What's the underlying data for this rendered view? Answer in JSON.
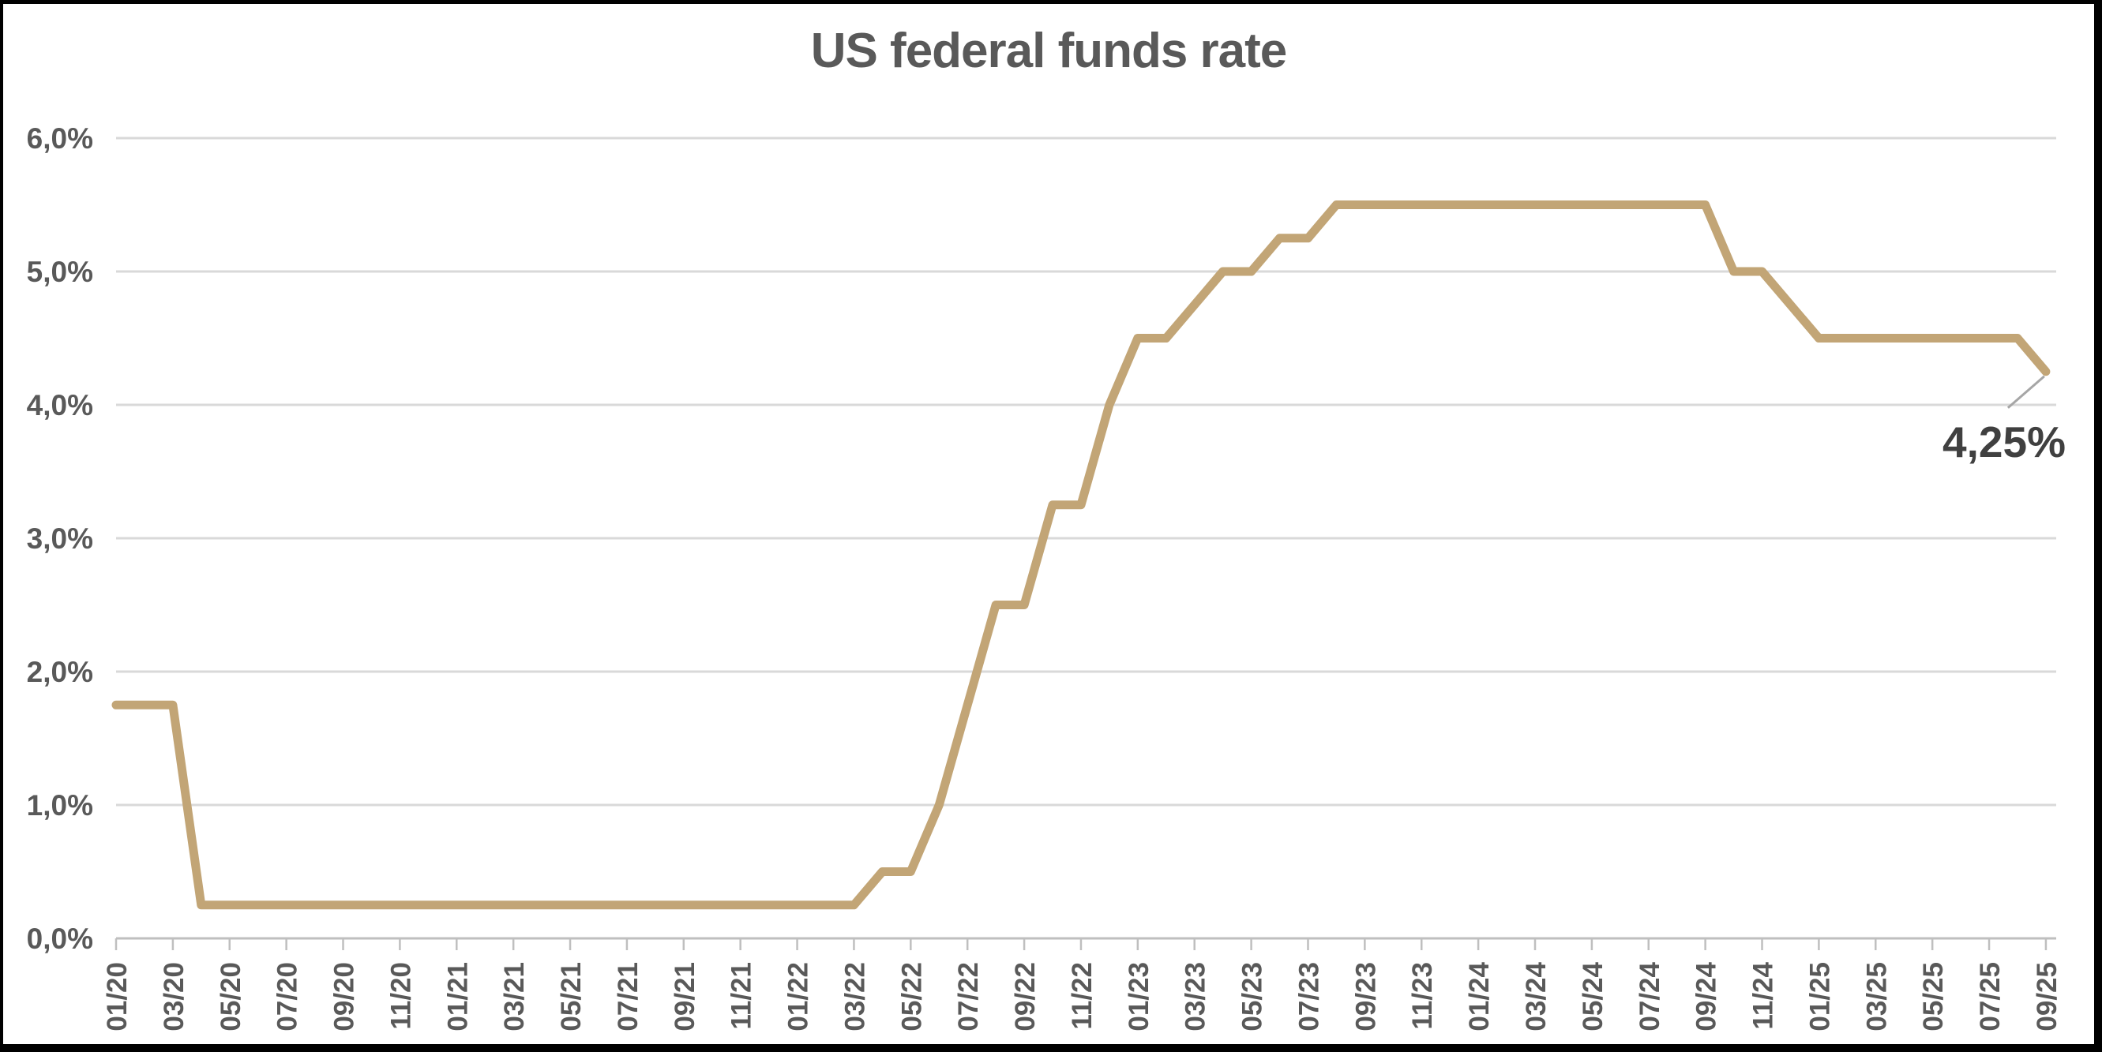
{
  "chart_data": {
    "type": "line",
    "title": "US federal funds rate",
    "x": [
      "01/20",
      "02/20",
      "03/20",
      "04/20",
      "05/20",
      "06/20",
      "07/20",
      "08/20",
      "09/20",
      "10/20",
      "11/20",
      "12/20",
      "01/21",
      "02/21",
      "03/21",
      "04/21",
      "05/21",
      "06/21",
      "07/21",
      "08/21",
      "09/21",
      "10/21",
      "11/21",
      "12/21",
      "01/22",
      "02/22",
      "03/22",
      "04/22",
      "05/22",
      "06/22",
      "07/22",
      "08/22",
      "09/22",
      "10/22",
      "11/22",
      "12/22",
      "01/23",
      "02/23",
      "03/23",
      "04/23",
      "05/23",
      "06/23",
      "07/23",
      "08/23",
      "09/23",
      "10/23",
      "11/23",
      "12/23",
      "01/24",
      "02/24",
      "03/24",
      "04/24",
      "05/24",
      "06/24",
      "07/24",
      "08/24",
      "09/24",
      "10/24",
      "11/24",
      "12/24",
      "01/25",
      "02/25",
      "03/25",
      "04/25",
      "05/25",
      "06/25",
      "07/25",
      "08/25",
      "09/25"
    ],
    "series": [
      {
        "name": "US federal funds rate",
        "color": "#C2A576",
        "values": [
          1.75,
          1.75,
          1.75,
          0.25,
          0.25,
          0.25,
          0.25,
          0.25,
          0.25,
          0.25,
          0.25,
          0.25,
          0.25,
          0.25,
          0.25,
          0.25,
          0.25,
          0.25,
          0.25,
          0.25,
          0.25,
          0.25,
          0.25,
          0.25,
          0.25,
          0.25,
          0.25,
          0.5,
          0.5,
          1.0,
          1.75,
          2.5,
          2.5,
          3.25,
          3.25,
          4.0,
          4.5,
          4.5,
          4.75,
          5.0,
          5.0,
          5.25,
          5.25,
          5.5,
          5.5,
          5.5,
          5.5,
          5.5,
          5.5,
          5.5,
          5.5,
          5.5,
          5.5,
          5.5,
          5.5,
          5.5,
          5.5,
          5.0,
          5.0,
          4.75,
          4.5,
          4.5,
          4.5,
          4.5,
          4.5,
          4.5,
          4.5,
          4.5,
          4.25
        ]
      }
    ],
    "x_tick_labels": [
      "01/20",
      "03/20",
      "05/20",
      "07/20",
      "09/20",
      "11/20",
      "01/21",
      "03/21",
      "05/21",
      "07/21",
      "09/21",
      "11/21",
      "01/22",
      "03/22",
      "05/22",
      "07/22",
      "09/22",
      "11/22",
      "01/23",
      "03/23",
      "05/23",
      "07/23",
      "09/23",
      "11/23",
      "01/24",
      "03/24",
      "05/24",
      "07/24",
      "09/24",
      "11/24",
      "01/25",
      "03/25",
      "05/25",
      "07/25",
      "09/25"
    ],
    "y_tick_labels": [
      "0,0%",
      "1,0%",
      "2,0%",
      "3,0%",
      "4,0%",
      "5,0%",
      "6,0%"
    ],
    "ylim": [
      0,
      6
    ],
    "grid": "horizontal",
    "legend": "none",
    "end_label": "4,25%",
    "colors": {
      "line": "#C2A576",
      "grid": "#D9D9D9",
      "axis": "#BFBFBF",
      "text": "#595959",
      "end_label_text": "#404040",
      "leader": "#A6A6A6",
      "background": "#FFFFFF",
      "frame": "#000000"
    }
  }
}
